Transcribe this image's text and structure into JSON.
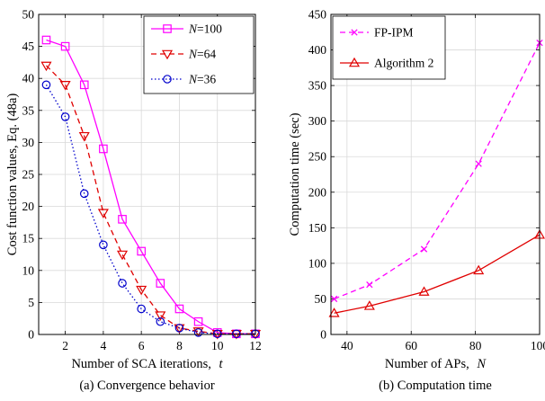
{
  "chart_data": [
    {
      "type": "line",
      "caption": "(a) Convergence behavior",
      "xlabel": "Number of SCA iterations,",
      "xlabel_var": "t",
      "ylabel": "Cost function values, Eq. (48a)",
      "xlim": [
        0.6,
        12
      ],
      "ylim": [
        0,
        50
      ],
      "xticks": [
        2,
        4,
        6,
        8,
        10,
        12
      ],
      "yticks": [
        0,
        5,
        10,
        15,
        20,
        25,
        30,
        35,
        40,
        45,
        50
      ],
      "grid": true,
      "legend_position": "top-right",
      "x": [
        1,
        2,
        3,
        4,
        5,
        6,
        7,
        8,
        9,
        10,
        11,
        12
      ],
      "series": [
        {
          "name_var": "N",
          "name_value": "=100",
          "color": "#ff00ff",
          "dash": "",
          "marker": "square",
          "values": [
            46,
            45,
            39,
            29,
            18,
            13,
            8,
            4,
            2,
            0.3,
            0.1,
            0.1
          ]
        },
        {
          "name_var": "N",
          "name_value": "=64",
          "color": "#e00000",
          "dash": "6,4",
          "marker": "triangle-down",
          "values": [
            42,
            39,
            31,
            19,
            12.5,
            7,
            3,
            1,
            0.5,
            0.1,
            0.1,
            0.1
          ]
        },
        {
          "name_var": "N",
          "name_value": "=36",
          "color": "#0000cc",
          "dash": "1.5,2.5",
          "marker": "circle",
          "values": [
            39,
            34,
            22,
            14,
            8,
            4,
            2,
            1,
            0.3,
            0.1,
            0.1,
            0.1
          ]
        }
      ]
    },
    {
      "type": "line",
      "caption": "(b) Computation time",
      "xlabel": "Number of APs,",
      "xlabel_var": "N",
      "ylabel": "Computation time (sec)",
      "xlim": [
        35,
        100
      ],
      "ylim": [
        0,
        450
      ],
      "xticks": [
        40,
        60,
        80,
        100
      ],
      "yticks": [
        0,
        50,
        100,
        150,
        200,
        250,
        300,
        350,
        400,
        450
      ],
      "grid": true,
      "legend_position": "top-left",
      "x": [
        36,
        47,
        64,
        81,
        100
      ],
      "series": [
        {
          "name": "FP-IPM",
          "color": "#ff00ff",
          "dash": "6,4",
          "marker": "x",
          "values": [
            50,
            70,
            120,
            240,
            410
          ]
        },
        {
          "name": "Algorithm 2",
          "color": "#e00000",
          "dash": "",
          "marker": "triangle-up",
          "values": [
            30,
            40,
            60,
            90,
            140
          ]
        }
      ]
    }
  ]
}
